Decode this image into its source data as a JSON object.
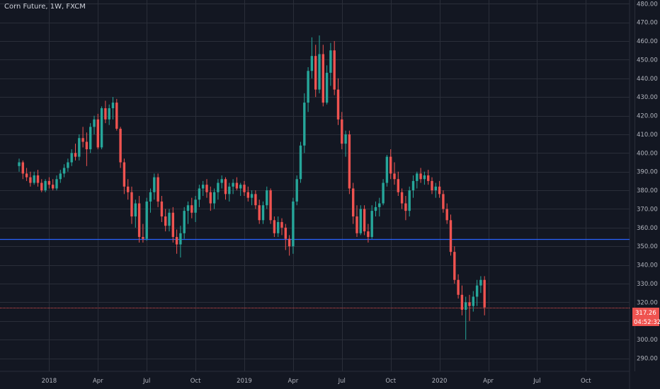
{
  "header": {
    "symbol_title": "Corn Future, 1W, FXCM"
  },
  "colors": {
    "background": "#131722",
    "grid": "#2a2e39",
    "up": "#26a69a",
    "down": "#ef5350",
    "horizontal_line": "#2962ff",
    "price_line": "#ef5350",
    "price_tag": "#ef5350",
    "axis_text": "#b2b5be"
  },
  "price_tag": {
    "price": "317.26",
    "countdown": "04:52:32"
  },
  "chart_data": {
    "type": "candlestick",
    "title": "Corn Future, 1W, FXCM",
    "ylim": [
      283,
      482
    ],
    "y_ticks": [
      290,
      300,
      310,
      320,
      330,
      340,
      350,
      360,
      370,
      380,
      390,
      400,
      410,
      420,
      430,
      440,
      450,
      460,
      470,
      480
    ],
    "y_tick_labels": [
      "290.00",
      "300.00",
      "310.00",
      "320.00",
      "330.00",
      "340.00",
      "350.00",
      "360.00",
      "370.00",
      "380.00",
      "390.00",
      "400.00",
      "410.00",
      "420.00",
      "430.00",
      "440.00",
      "450.00",
      "460.00",
      "470.00",
      "480.00"
    ],
    "x_ticks": [
      {
        "label": "2018",
        "week": 8
      },
      {
        "label": "Apr",
        "week": 21
      },
      {
        "label": "Jul",
        "week": 34
      },
      {
        "label": "Oct",
        "week": 47
      },
      {
        "label": "2019",
        "week": 60
      },
      {
        "label": "Apr",
        "week": 73
      },
      {
        "label": "Jul",
        "week": 86
      },
      {
        "label": "Oct",
        "week": 99
      },
      {
        "label": "2020",
        "week": 112
      },
      {
        "label": "Apr",
        "week": 125
      },
      {
        "label": "Jul",
        "week": 138
      },
      {
        "label": "Oct",
        "week": 151
      },
      {
        "label": "",
        "week": 164
      }
    ],
    "grid": true,
    "horizontal_lines": [
      354
    ],
    "last_price": 317.26,
    "candles": [
      {
        "o": 393,
        "h": 397,
        "l": 390,
        "c": 395
      },
      {
        "o": 395,
        "h": 396,
        "l": 386,
        "c": 389
      },
      {
        "o": 389,
        "h": 392,
        "l": 385,
        "c": 387
      },
      {
        "o": 387,
        "h": 390,
        "l": 382,
        "c": 384
      },
      {
        "o": 384,
        "h": 390,
        "l": 383,
        "c": 388
      },
      {
        "o": 388,
        "h": 391,
        "l": 382,
        "c": 384
      },
      {
        "o": 384,
        "h": 386,
        "l": 379,
        "c": 380
      },
      {
        "o": 380,
        "h": 386,
        "l": 379,
        "c": 385
      },
      {
        "o": 385,
        "h": 387,
        "l": 381,
        "c": 383
      },
      {
        "o": 383,
        "h": 386,
        "l": 380,
        "c": 381
      },
      {
        "o": 381,
        "h": 388,
        "l": 380,
        "c": 386
      },
      {
        "o": 386,
        "h": 391,
        "l": 384,
        "c": 389
      },
      {
        "o": 389,
        "h": 394,
        "l": 387,
        "c": 392
      },
      {
        "o": 392,
        "h": 397,
        "l": 390,
        "c": 395
      },
      {
        "o": 395,
        "h": 402,
        "l": 393,
        "c": 400
      },
      {
        "o": 400,
        "h": 405,
        "l": 396,
        "c": 398
      },
      {
        "o": 398,
        "h": 410,
        "l": 396,
        "c": 408
      },
      {
        "o": 408,
        "h": 414,
        "l": 403,
        "c": 406
      },
      {
        "o": 406,
        "h": 411,
        "l": 393,
        "c": 402
      },
      {
        "o": 402,
        "h": 416,
        "l": 400,
        "c": 414
      },
      {
        "o": 414,
        "h": 420,
        "l": 410,
        "c": 418
      },
      {
        "o": 418,
        "h": 421,
        "l": 402,
        "c": 403
      },
      {
        "o": 403,
        "h": 425,
        "l": 402,
        "c": 424
      },
      {
        "o": 424,
        "h": 428,
        "l": 416,
        "c": 418
      },
      {
        "o": 418,
        "h": 426,
        "l": 415,
        "c": 424
      },
      {
        "o": 424,
        "h": 430,
        "l": 418,
        "c": 427
      },
      {
        "o": 427,
        "h": 429,
        "l": 412,
        "c": 413
      },
      {
        "o": 413,
        "h": 414,
        "l": 392,
        "c": 395
      },
      {
        "o": 395,
        "h": 397,
        "l": 378,
        "c": 382
      },
      {
        "o": 382,
        "h": 386,
        "l": 375,
        "c": 379
      },
      {
        "o": 379,
        "h": 382,
        "l": 362,
        "c": 366
      },
      {
        "o": 366,
        "h": 375,
        "l": 360,
        "c": 373
      },
      {
        "o": 373,
        "h": 377,
        "l": 352,
        "c": 355
      },
      {
        "o": 355,
        "h": 362,
        "l": 352,
        "c": 354
      },
      {
        "o": 354,
        "h": 376,
        "l": 353,
        "c": 374
      },
      {
        "o": 374,
        "h": 381,
        "l": 368,
        "c": 379
      },
      {
        "o": 379,
        "h": 389,
        "l": 375,
        "c": 387
      },
      {
        "o": 387,
        "h": 389,
        "l": 371,
        "c": 374
      },
      {
        "o": 374,
        "h": 377,
        "l": 363,
        "c": 366
      },
      {
        "o": 366,
        "h": 370,
        "l": 358,
        "c": 361
      },
      {
        "o": 361,
        "h": 370,
        "l": 358,
        "c": 368
      },
      {
        "o": 368,
        "h": 371,
        "l": 352,
        "c": 355
      },
      {
        "o": 355,
        "h": 359,
        "l": 346,
        "c": 351
      },
      {
        "o": 351,
        "h": 361,
        "l": 344,
        "c": 357
      },
      {
        "o": 357,
        "h": 371,
        "l": 354,
        "c": 369
      },
      {
        "o": 369,
        "h": 374,
        "l": 362,
        "c": 372
      },
      {
        "o": 372,
        "h": 376,
        "l": 365,
        "c": 368
      },
      {
        "o": 368,
        "h": 377,
        "l": 363,
        "c": 375
      },
      {
        "o": 375,
        "h": 383,
        "l": 371,
        "c": 381
      },
      {
        "o": 381,
        "h": 385,
        "l": 377,
        "c": 383
      },
      {
        "o": 383,
        "h": 386,
        "l": 376,
        "c": 379
      },
      {
        "o": 379,
        "h": 382,
        "l": 369,
        "c": 373
      },
      {
        "o": 373,
        "h": 381,
        "l": 370,
        "c": 379
      },
      {
        "o": 379,
        "h": 386,
        "l": 375,
        "c": 384
      },
      {
        "o": 384,
        "h": 388,
        "l": 381,
        "c": 386
      },
      {
        "o": 386,
        "h": 387,
        "l": 375,
        "c": 378
      },
      {
        "o": 378,
        "h": 384,
        "l": 374,
        "c": 382
      },
      {
        "o": 382,
        "h": 386,
        "l": 378,
        "c": 384
      },
      {
        "o": 384,
        "h": 387,
        "l": 380,
        "c": 381
      },
      {
        "o": 381,
        "h": 384,
        "l": 377,
        "c": 383
      },
      {
        "o": 383,
        "h": 385,
        "l": 377,
        "c": 379
      },
      {
        "o": 379,
        "h": 382,
        "l": 374,
        "c": 376
      },
      {
        "o": 376,
        "h": 380,
        "l": 372,
        "c": 378
      },
      {
        "o": 378,
        "h": 380,
        "l": 370,
        "c": 372
      },
      {
        "o": 372,
        "h": 375,
        "l": 362,
        "c": 364
      },
      {
        "o": 364,
        "h": 374,
        "l": 362,
        "c": 372
      },
      {
        "o": 372,
        "h": 382,
        "l": 370,
        "c": 380
      },
      {
        "o": 380,
        "h": 381,
        "l": 362,
        "c": 364
      },
      {
        "o": 364,
        "h": 366,
        "l": 355,
        "c": 357
      },
      {
        "o": 357,
        "h": 366,
        "l": 355,
        "c": 363
      },
      {
        "o": 363,
        "h": 365,
        "l": 356,
        "c": 360
      },
      {
        "o": 360,
        "h": 362,
        "l": 348,
        "c": 354
      },
      {
        "o": 354,
        "h": 356,
        "l": 345,
        "c": 350
      },
      {
        "o": 350,
        "h": 376,
        "l": 346,
        "c": 374
      },
      {
        "o": 374,
        "h": 388,
        "l": 372,
        "c": 386
      },
      {
        "o": 386,
        "h": 406,
        "l": 384,
        "c": 404
      },
      {
        "o": 404,
        "h": 432,
        "l": 400,
        "c": 427
      },
      {
        "o": 427,
        "h": 446,
        "l": 422,
        "c": 444
      },
      {
        "o": 444,
        "h": 462,
        "l": 440,
        "c": 452
      },
      {
        "o": 452,
        "h": 458,
        "l": 430,
        "c": 434
      },
      {
        "o": 434,
        "h": 463,
        "l": 432,
        "c": 453
      },
      {
        "o": 453,
        "h": 458,
        "l": 425,
        "c": 427
      },
      {
        "o": 427,
        "h": 447,
        "l": 426,
        "c": 443
      },
      {
        "o": 443,
        "h": 459,
        "l": 436,
        "c": 455
      },
      {
        "o": 455,
        "h": 460,
        "l": 431,
        "c": 434
      },
      {
        "o": 434,
        "h": 440,
        "l": 415,
        "c": 418
      },
      {
        "o": 418,
        "h": 422,
        "l": 402,
        "c": 405
      },
      {
        "o": 405,
        "h": 412,
        "l": 398,
        "c": 410
      },
      {
        "o": 410,
        "h": 412,
        "l": 378,
        "c": 381
      },
      {
        "o": 381,
        "h": 384,
        "l": 362,
        "c": 366
      },
      {
        "o": 366,
        "h": 372,
        "l": 355,
        "c": 357
      },
      {
        "o": 357,
        "h": 372,
        "l": 356,
        "c": 370
      },
      {
        "o": 370,
        "h": 372,
        "l": 356,
        "c": 358
      },
      {
        "o": 358,
        "h": 362,
        "l": 352,
        "c": 355
      },
      {
        "o": 355,
        "h": 372,
        "l": 354,
        "c": 369
      },
      {
        "o": 369,
        "h": 374,
        "l": 366,
        "c": 371
      },
      {
        "o": 371,
        "h": 376,
        "l": 366,
        "c": 373
      },
      {
        "o": 373,
        "h": 386,
        "l": 372,
        "c": 384
      },
      {
        "o": 384,
        "h": 399,
        "l": 382,
        "c": 398
      },
      {
        "o": 398,
        "h": 402,
        "l": 386,
        "c": 389
      },
      {
        "o": 389,
        "h": 395,
        "l": 383,
        "c": 386
      },
      {
        "o": 386,
        "h": 390,
        "l": 377,
        "c": 379
      },
      {
        "o": 379,
        "h": 381,
        "l": 370,
        "c": 373
      },
      {
        "o": 373,
        "h": 377,
        "l": 364,
        "c": 369
      },
      {
        "o": 369,
        "h": 382,
        "l": 366,
        "c": 380
      },
      {
        "o": 380,
        "h": 388,
        "l": 376,
        "c": 385
      },
      {
        "o": 385,
        "h": 390,
        "l": 381,
        "c": 389
      },
      {
        "o": 389,
        "h": 392,
        "l": 384,
        "c": 386
      },
      {
        "o": 386,
        "h": 390,
        "l": 383,
        "c": 388
      },
      {
        "o": 388,
        "h": 391,
        "l": 383,
        "c": 385
      },
      {
        "o": 385,
        "h": 387,
        "l": 378,
        "c": 380
      },
      {
        "o": 380,
        "h": 384,
        "l": 376,
        "c": 382
      },
      {
        "o": 382,
        "h": 385,
        "l": 376,
        "c": 378
      },
      {
        "o": 378,
        "h": 380,
        "l": 368,
        "c": 370
      },
      {
        "o": 370,
        "h": 373,
        "l": 362,
        "c": 364
      },
      {
        "o": 364,
        "h": 367,
        "l": 345,
        "c": 347
      },
      {
        "o": 347,
        "h": 350,
        "l": 330,
        "c": 332
      },
      {
        "o": 332,
        "h": 335,
        "l": 322,
        "c": 324
      },
      {
        "o": 324,
        "h": 329,
        "l": 313,
        "c": 316
      },
      {
        "o": 316,
        "h": 323,
        "l": 300,
        "c": 320
      },
      {
        "o": 320,
        "h": 324,
        "l": 310,
        "c": 318
      },
      {
        "o": 318,
        "h": 326,
        "l": 315,
        "c": 323
      },
      {
        "o": 323,
        "h": 332,
        "l": 318,
        "c": 329
      },
      {
        "o": 329,
        "h": 334,
        "l": 325,
        "c": 332
      },
      {
        "o": 332,
        "h": 334,
        "l": 313,
        "c": 317.26
      }
    ]
  }
}
